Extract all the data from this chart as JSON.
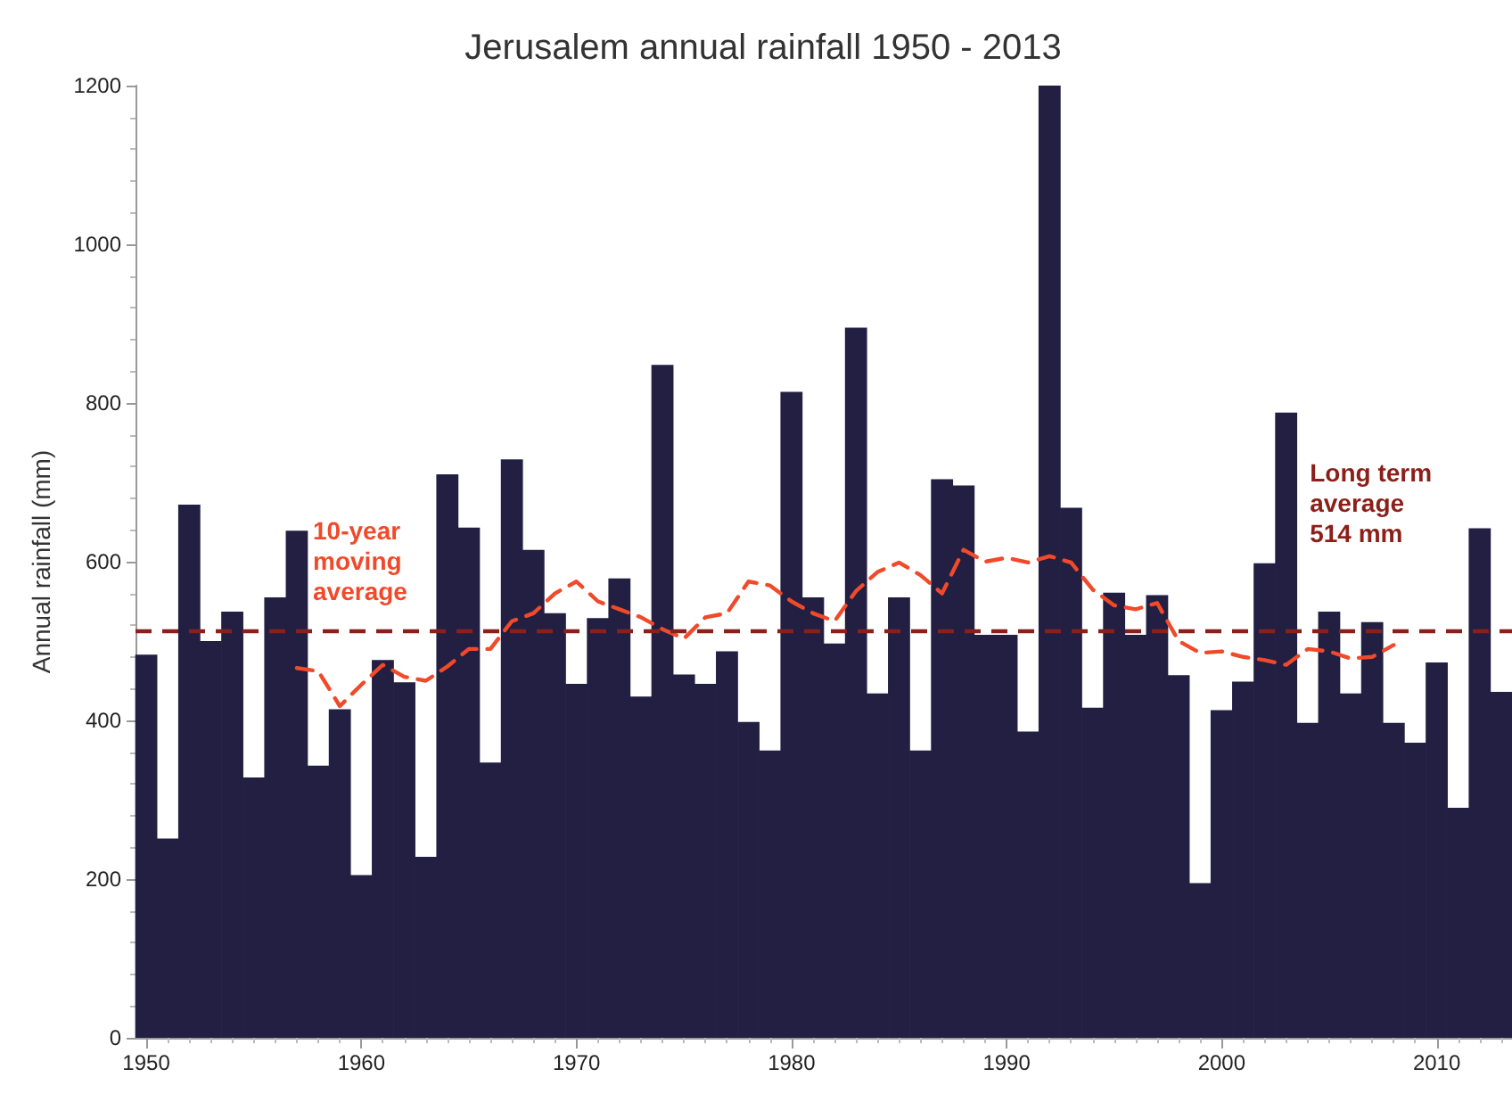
{
  "chart_data": {
    "type": "bar",
    "title": "Jerusalem annual rainfall 1950 - 2013",
    "ylabel": "Annual rainfall (mm)",
    "x": [
      1950,
      1951,
      1952,
      1953,
      1954,
      1955,
      1956,
      1957,
      1958,
      1959,
      1960,
      1961,
      1962,
      1963,
      1964,
      1965,
      1966,
      1967,
      1968,
      1969,
      1970,
      1971,
      1972,
      1973,
      1974,
      1975,
      1976,
      1977,
      1978,
      1979,
      1980,
      1981,
      1982,
      1983,
      1984,
      1985,
      1986,
      1987,
      1988,
      1989,
      1990,
      1991,
      1992,
      1993,
      1994,
      1995,
      1996,
      1997,
      1998,
      1999,
      2000,
      2001,
      2002,
      2003,
      2004,
      2005,
      2006,
      2007,
      2008,
      2009,
      2010,
      2011,
      2012,
      2013
    ],
    "series": [
      {
        "color": "#221f43",
        "values": [
          483,
          251,
          672,
          500,
          537,
          328,
          555,
          639,
          343,
          414,
          205,
          476,
          448,
          228,
          710,
          643,
          347,
          729,
          615,
          535,
          446,
          529,
          579,
          430,
          848,
          458,
          446,
          487,
          398,
          362,
          814,
          555,
          497,
          895,
          434,
          555,
          362,
          704,
          696,
          508,
          508,
          386,
          1200,
          668,
          416,
          561,
          508,
          558,
          457,
          195,
          413,
          449,
          598,
          788,
          397,
          537,
          434,
          524,
          397,
          372,
          473,
          290,
          642,
          436
        ]
      },
      {
        "type": "line",
        "name": "10-year moving average",
        "color": "#f04a2a",
        "line_style": "dashed",
        "marker": "none",
        "x": [
          1957,
          1958,
          1959,
          1960,
          1961,
          1962,
          1963,
          1964,
          1965,
          1966,
          1967,
          1968,
          1969,
          1970,
          1971,
          1972,
          1973,
          1974,
          1975,
          1976,
          1977,
          1978,
          1979,
          1980,
          1981,
          1982,
          1983,
          1984,
          1985,
          1986,
          1987,
          1988,
          1989,
          1990,
          1991,
          1992,
          1993,
          1994,
          1995,
          1996,
          1997,
          1998,
          1999,
          2000,
          2001,
          2002,
          2003,
          2004,
          2005,
          2006,
          2007,
          2008
        ],
        "values": [
          466,
          462,
          418,
          445,
          470,
          455,
          450,
          468,
          490,
          490,
          525,
          535,
          560,
          575,
          550,
          540,
          530,
          515,
          503,
          530,
          535,
          575,
          570,
          550,
          535,
          525,
          563,
          587,
          599,
          583,
          560,
          615,
          600,
          605,
          599,
          607,
          599,
          565,
          545,
          540,
          548,
          500,
          485,
          487,
          480,
          476,
          470,
          490,
          487,
          478,
          480,
          495
        ]
      }
    ],
    "xlim": [
      1949.5,
      2013.5
    ],
    "xticks": [
      1950,
      1960,
      1970,
      1980,
      1990,
      2000,
      2010
    ],
    "ylim": [
      0,
      1200
    ],
    "yticks": [
      0,
      200,
      400,
      600,
      800,
      1000,
      1200
    ],
    "ref_lines": [
      {
        "axis": "y",
        "value": 514,
        "label": "Long term\naverage\n514 mm",
        "color": "#8b1f1a",
        "line_style": "dashed"
      }
    ],
    "grid": false,
    "legend": false
  }
}
